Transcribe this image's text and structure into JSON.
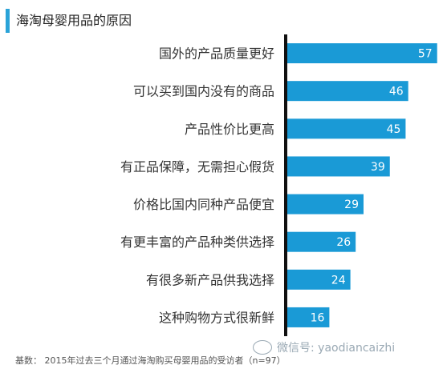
{
  "title": "海淘母婴用品的原因",
  "footer": "基数： 2015年过去三个月通过海淘购买母婴用品的受访者（n=97）",
  "watermark": "微信号: yaodiancaizhi",
  "colors": {
    "bar": "#1a9ad6",
    "axis": "#111111",
    "accent": "#2aa3d8"
  },
  "chart_data": {
    "type": "bar",
    "orientation": "horizontal",
    "categories": [
      "国外的产品质量更好",
      "可以买到国内没有的商品",
      "产品性价比更高",
      "有正品保障，无需担心假货",
      "价格比国内同种产品便宜",
      "有更丰富的产品种类供选择",
      "有很多新产品供我选择",
      "这种购物方式很新鲜"
    ],
    "values": [
      57,
      46,
      45,
      39,
      29,
      26,
      24,
      16
    ],
    "title": "海淘母婴用品的原因",
    "xlabel": "",
    "ylabel": "",
    "xlim": [
      0,
      58
    ],
    "grid": false
  }
}
